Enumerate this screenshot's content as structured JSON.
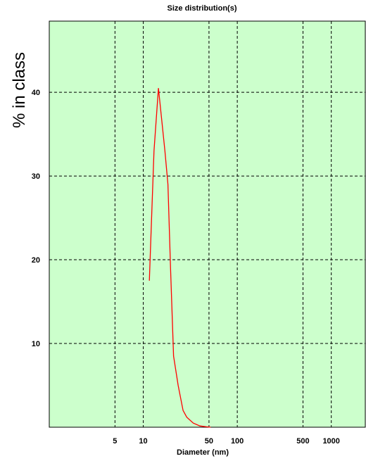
{
  "chart_data": {
    "type": "line",
    "title": "Size distribution(s)",
    "xlabel": "Diameter (nm)",
    "ylabel": "% in class",
    "x_scale": "log",
    "xlim": [
      1,
      2300
    ],
    "ylim": [
      0,
      48.5
    ],
    "grid": true,
    "legend": "none",
    "x_ticks": [
      5,
      10,
      50,
      100,
      500,
      1000
    ],
    "y_ticks": [
      10,
      20,
      30,
      40
    ],
    "colors": {
      "plot_background": "#ccffcc",
      "line": "#ff0000",
      "grid": "#000000"
    },
    "series": [
      {
        "x": [
          11.6,
          12.0,
          13.0,
          14.5,
          15.6,
          17.0,
          18.3,
          19.5,
          21.0,
          23.5,
          26.5,
          29.0,
          34.0,
          40.0,
          47.0,
          52.0
        ],
        "y": [
          17.5,
          22.0,
          33.0,
          40.5,
          37.0,
          33.0,
          29.0,
          19.0,
          8.5,
          5.0,
          2.0,
          1.2,
          0.5,
          0.15,
          0.05,
          0.0
        ]
      }
    ]
  }
}
